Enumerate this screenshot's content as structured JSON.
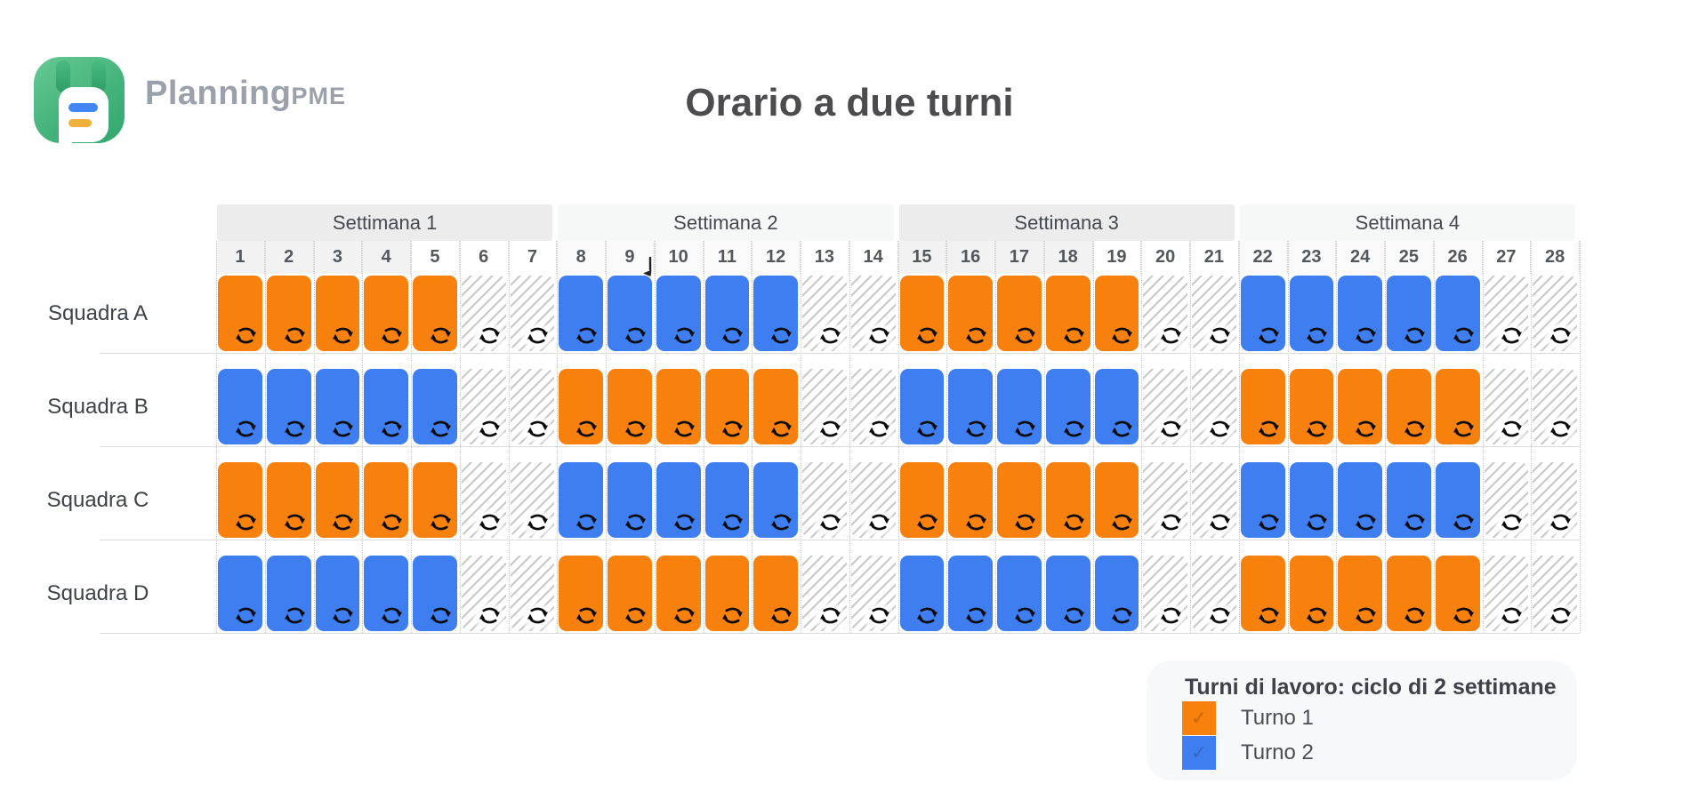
{
  "brand": {
    "name": "Planning",
    "suffix": "PME"
  },
  "title": "Orario a due turni",
  "schedule": {
    "week_headers": [
      "Settimana 1",
      "Settimana 2",
      "Settimana 3",
      "Settimana 4"
    ],
    "day_numbers": [
      "1",
      "2",
      "3",
      "4",
      "5",
      "6",
      "7",
      "8",
      "9",
      "10",
      "11",
      "12",
      "13",
      "14",
      "15",
      "16",
      "17",
      "18",
      "19",
      "20",
      "21",
      "22",
      "23",
      "24",
      "25",
      "26",
      "27",
      "28"
    ],
    "work_days_per_week": 5,
    "off_days_per_week": 2,
    "teams": [
      {
        "label": "Squadra A",
        "week_shifts": [
          "turno1",
          "turno2",
          "turno1",
          "turno2"
        ]
      },
      {
        "label": "Squadra B",
        "week_shifts": [
          "turno2",
          "turno1",
          "turno2",
          "turno1"
        ]
      },
      {
        "label": "Squadra C",
        "week_shifts": [
          "turno1",
          "turno2",
          "turno1",
          "turno2"
        ]
      },
      {
        "label": "Squadra D",
        "week_shifts": [
          "turno2",
          "turno1",
          "turno2",
          "turno1"
        ]
      }
    ],
    "cell_icon": "repeat-icon"
  },
  "legend": {
    "title": "Turni di lavoro: ciclo di 2 settimane",
    "items": [
      {
        "label": "Turno 1",
        "shift_id": "turno1",
        "color": "#F8800C",
        "checked": true
      },
      {
        "label": "Turno 2",
        "shift_id": "turno2",
        "color": "#3E7EF0",
        "checked": true
      }
    ]
  },
  "colors": {
    "turno1": "#F8800C",
    "turno2": "#3E7EF0",
    "icon": "#0B0B0B",
    "check_mark": "✓"
  }
}
